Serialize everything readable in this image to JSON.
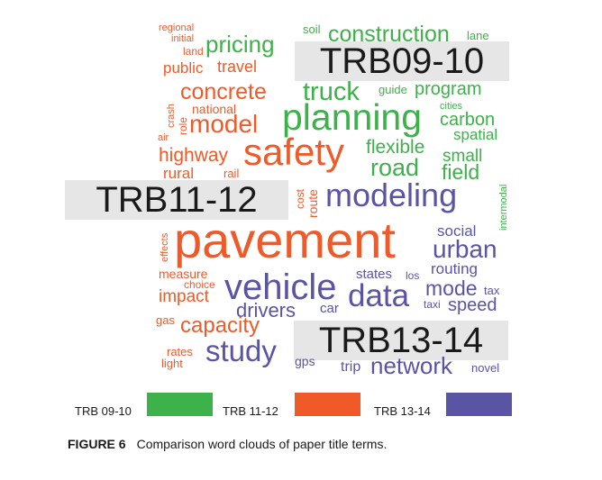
{
  "colors": {
    "trb0910": "#3db14a",
    "trb1112": "#f05a28",
    "trb1314": "#5a54a4",
    "period_box": "#e6e6e6"
  },
  "period_labels": {
    "trb0910": "TRB09-10",
    "trb1112": "TRB11-12",
    "trb1314": "TRB13-14"
  },
  "words": {
    "regional": "regional",
    "initial": "initial",
    "land": "land",
    "public": "public",
    "pricing": "pricing",
    "travel": "travel",
    "soil": "soil",
    "construction": "construction",
    "lane": "lane",
    "crash": "crash",
    "role": "role",
    "concrete": "concrete",
    "national": "national",
    "truck": "truck",
    "guide": "guide",
    "program": "program",
    "air": "air",
    "model": "model",
    "planning": "planning",
    "cities": "cities",
    "carbon": "carbon",
    "spatial": "spatial",
    "highway": "highway",
    "safety": "safety",
    "flexible": "flexible",
    "small": "small",
    "rural": "rural",
    "rail": "rail",
    "road": "road",
    "field": "field",
    "cost": "cost",
    "route": "route",
    "modeling": "modeling",
    "intermodal": "intermodal",
    "effects": "effects",
    "pavement": "pavement",
    "social": "social",
    "urban": "urban",
    "measure": "measure",
    "choice": "choice",
    "routing": "routing",
    "states": "states",
    "los": "los",
    "vehicle": "vehicle",
    "impact": "impact",
    "mode": "mode",
    "tax": "tax",
    "data": "data",
    "drivers": "drivers",
    "car": "car",
    "taxi": "taxi",
    "speed": "speed",
    "gas": "gas",
    "capacity": "capacity",
    "rates": "rates",
    "light": "light",
    "study": "study",
    "gps": "gps",
    "trip": "trip",
    "network": "network",
    "novel": "novel"
  },
  "legend": [
    {
      "label": "TRB 09-10",
      "color": "#3db14a"
    },
    {
      "label": "TRB 11-12",
      "color": "#f05a28"
    },
    {
      "label": "TRB 13-14",
      "color": "#5a54a4"
    }
  ],
  "caption": {
    "number": "FIGURE 6",
    "text": "Comparison word clouds of paper title terms."
  }
}
